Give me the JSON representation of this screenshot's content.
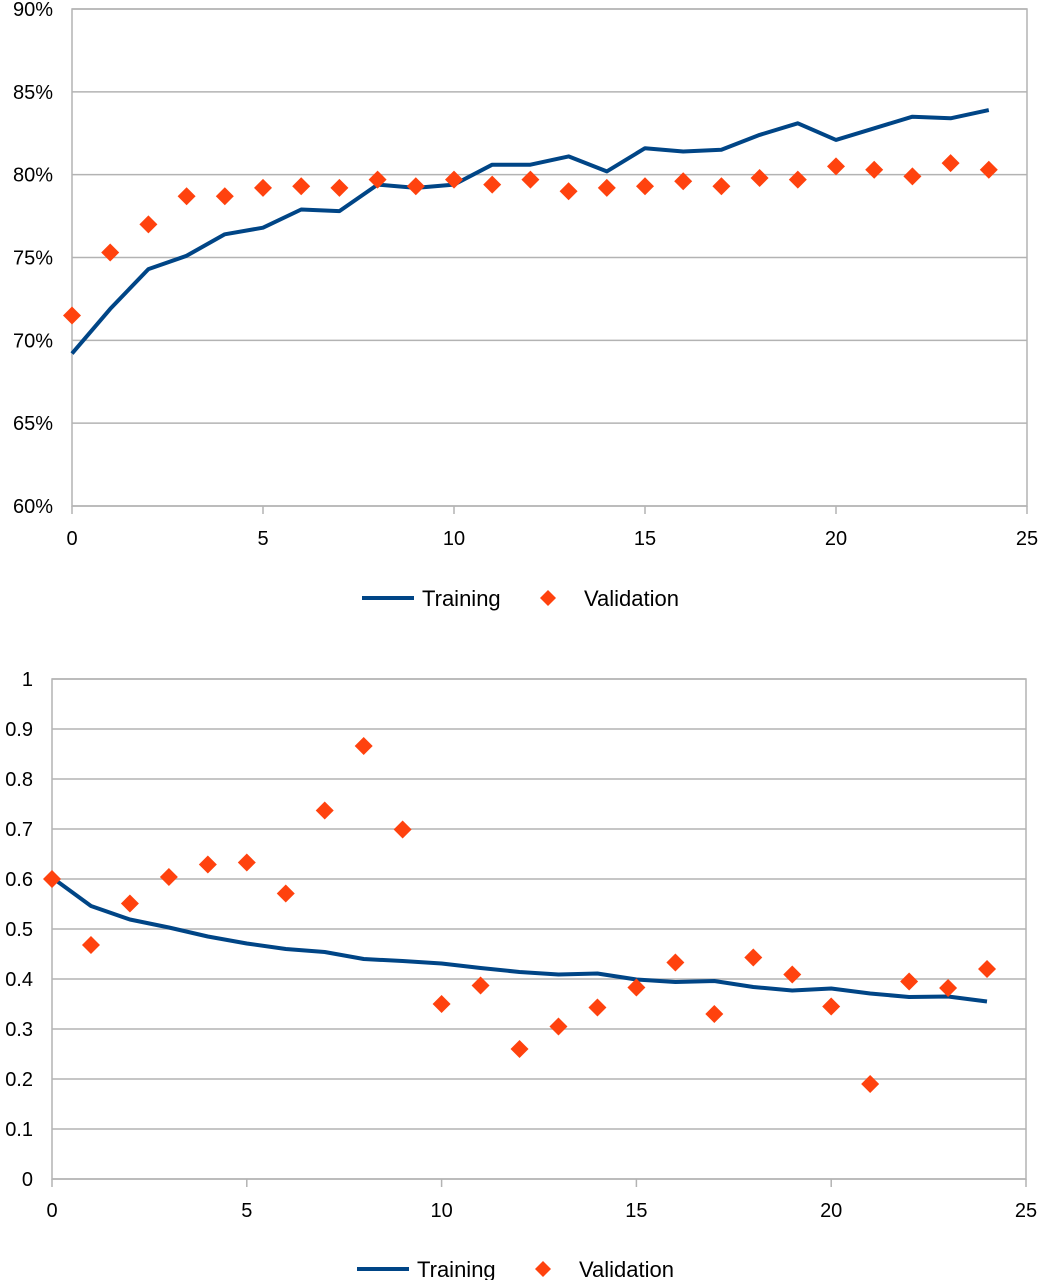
{
  "colors": {
    "training": "#004586",
    "validation": "#ff420e",
    "grid": "#b3b3b3",
    "axis": "#b3b3b3"
  },
  "chart_data": [
    {
      "type": "line",
      "title": "",
      "xlabel": "",
      "ylabel": "",
      "x_ticks": [
        "0",
        "5",
        "10",
        "15",
        "20",
        "25"
      ],
      "y_ticks": [
        "60%",
        "65%",
        "70%",
        "75%",
        "80%",
        "85%",
        "90%"
      ],
      "xlim": [
        0,
        25
      ],
      "ylim": [
        0.6,
        0.9
      ],
      "grid": true,
      "legend_position": "bottom",
      "x": [
        0,
        1,
        2,
        3,
        4,
        5,
        6,
        7,
        8,
        9,
        10,
        11,
        12,
        13,
        14,
        15,
        16,
        17,
        18,
        19,
        20,
        21,
        22,
        23,
        24
      ],
      "series": [
        {
          "name": "Training",
          "style": "line",
          "values": [
            0.692,
            0.719,
            0.743,
            0.751,
            0.764,
            0.768,
            0.779,
            0.778,
            0.794,
            0.792,
            0.794,
            0.806,
            0.806,
            0.811,
            0.802,
            0.816,
            0.814,
            0.815,
            0.824,
            0.831,
            0.821,
            0.828,
            0.835,
            0.834,
            0.839
          ]
        },
        {
          "name": "Validation",
          "style": "marker",
          "values": [
            0.715,
            0.753,
            0.77,
            0.787,
            0.787,
            0.792,
            0.793,
            0.792,
            0.797,
            0.793,
            0.797,
            0.794,
            0.797,
            0.79,
            0.792,
            0.793,
            0.796,
            0.793,
            0.798,
            0.797,
            0.805,
            0.803,
            0.799,
            0.807,
            0.803
          ]
        }
      ]
    },
    {
      "type": "line",
      "title": "",
      "xlabel": "",
      "ylabel": "",
      "x_ticks": [
        "0",
        "5",
        "10",
        "15",
        "20",
        "25"
      ],
      "y_ticks": [
        "0",
        "0.1",
        "0.2",
        "0.3",
        "0.4",
        "0.5",
        "0.6",
        "0.7",
        "0.8",
        "0.9",
        "1"
      ],
      "xlim": [
        0,
        25
      ],
      "ylim": [
        0,
        1
      ],
      "grid": true,
      "legend_position": "bottom",
      "x": [
        0,
        1,
        2,
        3,
        4,
        5,
        6,
        7,
        8,
        9,
        10,
        11,
        12,
        13,
        14,
        15,
        16,
        17,
        18,
        19,
        20,
        21,
        22,
        23,
        24
      ],
      "series": [
        {
          "name": "Training",
          "style": "line",
          "values": [
            0.603,
            0.546,
            0.519,
            0.503,
            0.485,
            0.471,
            0.46,
            0.454,
            0.44,
            0.436,
            0.431,
            0.422,
            0.414,
            0.409,
            0.411,
            0.399,
            0.394,
            0.396,
            0.384,
            0.377,
            0.381,
            0.371,
            0.364,
            0.365,
            0.355
          ]
        },
        {
          "name": "Validation",
          "style": "marker",
          "values": [
            0.6,
            0.468,
            0.551,
            0.604,
            0.629,
            0.633,
            0.571,
            0.737,
            0.866,
            0.699,
            0.35,
            0.387,
            0.26,
            0.305,
            0.343,
            0.383,
            0.433,
            0.33,
            0.443,
            0.409,
            0.345,
            0.19,
            0.395,
            0.382,
            0.42
          ]
        }
      ]
    }
  ]
}
